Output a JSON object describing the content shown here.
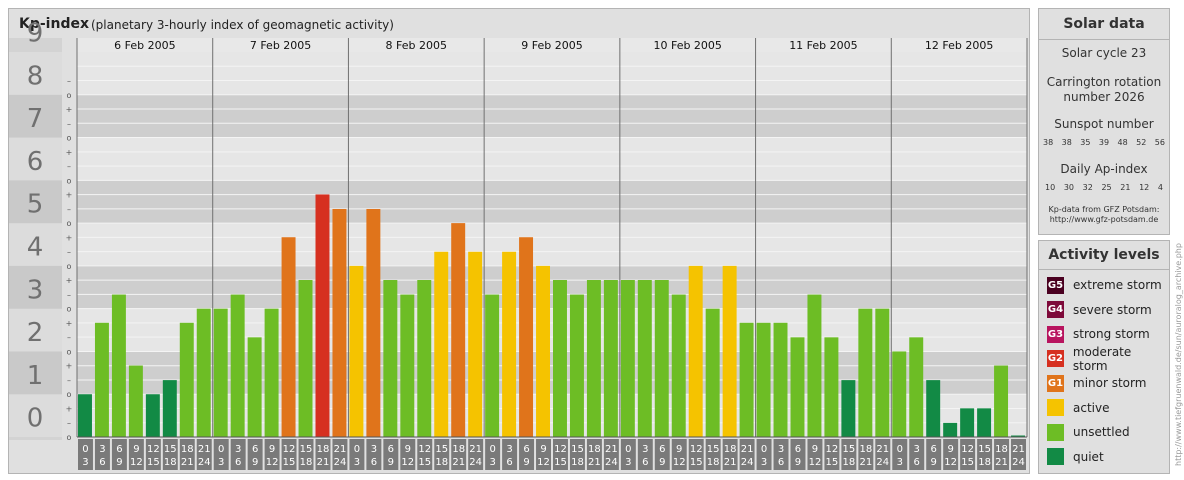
{
  "header": {
    "title": "Kp-index",
    "subtitle": "(planetary 3-hourly index of geomagnetic activity)"
  },
  "chart_data": {
    "type": "bar",
    "title": "Kp-index",
    "subtitle": "(planetary 3-hourly index of geomagnetic activity)",
    "ylim": [
      0,
      9
    ],
    "y_ticks": [
      "0",
      "1",
      "2",
      "3",
      "4",
      "5",
      "6",
      "7",
      "8",
      "9"
    ],
    "sub_ticks": [
      "–",
      "o",
      "+"
    ],
    "days": [
      "6 Feb 2005",
      "7 Feb 2005",
      "8 Feb 2005",
      "9 Feb 2005",
      "10 Feb 2005",
      "11 Feb 2005",
      "12 Feb 2005"
    ],
    "hour_top": [
      "0",
      "3",
      "6",
      "9",
      "12",
      "15",
      "18",
      "21"
    ],
    "hour_bottom": [
      "3",
      "6",
      "9",
      "12",
      "15",
      "18",
      "21",
      "24"
    ],
    "values": [
      [
        1.0,
        2.67,
        3.33,
        1.67,
        1.0,
        1.33,
        2.67,
        3.0
      ],
      [
        3.0,
        3.33,
        2.33,
        3.0,
        4.67,
        3.67,
        5.67,
        5.33
      ],
      [
        4.0,
        5.33,
        3.67,
        3.33,
        3.67,
        4.33,
        5.0,
        4.33
      ],
      [
        3.33,
        4.33,
        4.67,
        4.0,
        3.67,
        3.33,
        3.67,
        3.67
      ],
      [
        3.67,
        3.67,
        3.67,
        3.33,
        4.0,
        3.0,
        4.0,
        2.67
      ],
      [
        2.67,
        2.67,
        2.33,
        3.33,
        2.33,
        1.33,
        3.0,
        3.0
      ],
      [
        2.0,
        2.33,
        1.33,
        0.33,
        0.67,
        0.67,
        1.67,
        0.0
      ]
    ],
    "colors": {
      "quiet": "#128a45",
      "unsettled": "#6dbd25",
      "active": "#f5c300",
      "minor": "#e0741b",
      "moderate": "#d63020"
    },
    "grid": true
  },
  "solar": {
    "title": "Solar data",
    "cycle": "Solar cycle 23",
    "carrington_line1": "Carrington rotation",
    "carrington_line2": "number 2026",
    "sunspot_title": "Sunspot number",
    "sunspot_values": [
      "38",
      "38",
      "35",
      "39",
      "48",
      "52",
      "56"
    ],
    "ap_title": "Daily Ap-index",
    "ap_values": [
      "10",
      "30",
      "32",
      "25",
      "21",
      "12",
      "4"
    ],
    "credit_line1": "Kp-data from GFZ Potsdam:",
    "credit_line2": "http://www.gfz-potsdam.de"
  },
  "levels": {
    "title": "Activity levels",
    "items": [
      {
        "code": "G5",
        "label": "extreme storm",
        "color": "#4a0020"
      },
      {
        "code": "G4",
        "label": "severe storm",
        "color": "#7e0a3a"
      },
      {
        "code": "G3",
        "label": "strong storm",
        "color": "#b8145e"
      },
      {
        "code": "G2",
        "label": "moderate storm",
        "color": "#d63020"
      },
      {
        "code": "G1",
        "label": "minor storm",
        "color": "#e0741b"
      },
      {
        "code": "",
        "label": "active",
        "color": "#f5c300"
      },
      {
        "code": "",
        "label": "unsettled",
        "color": "#6dbd25"
      },
      {
        "code": "",
        "label": "quiet",
        "color": "#128a45"
      }
    ]
  },
  "watermark": "http://www.tiefgruenwald.de/sun/auroralog_archive.php"
}
